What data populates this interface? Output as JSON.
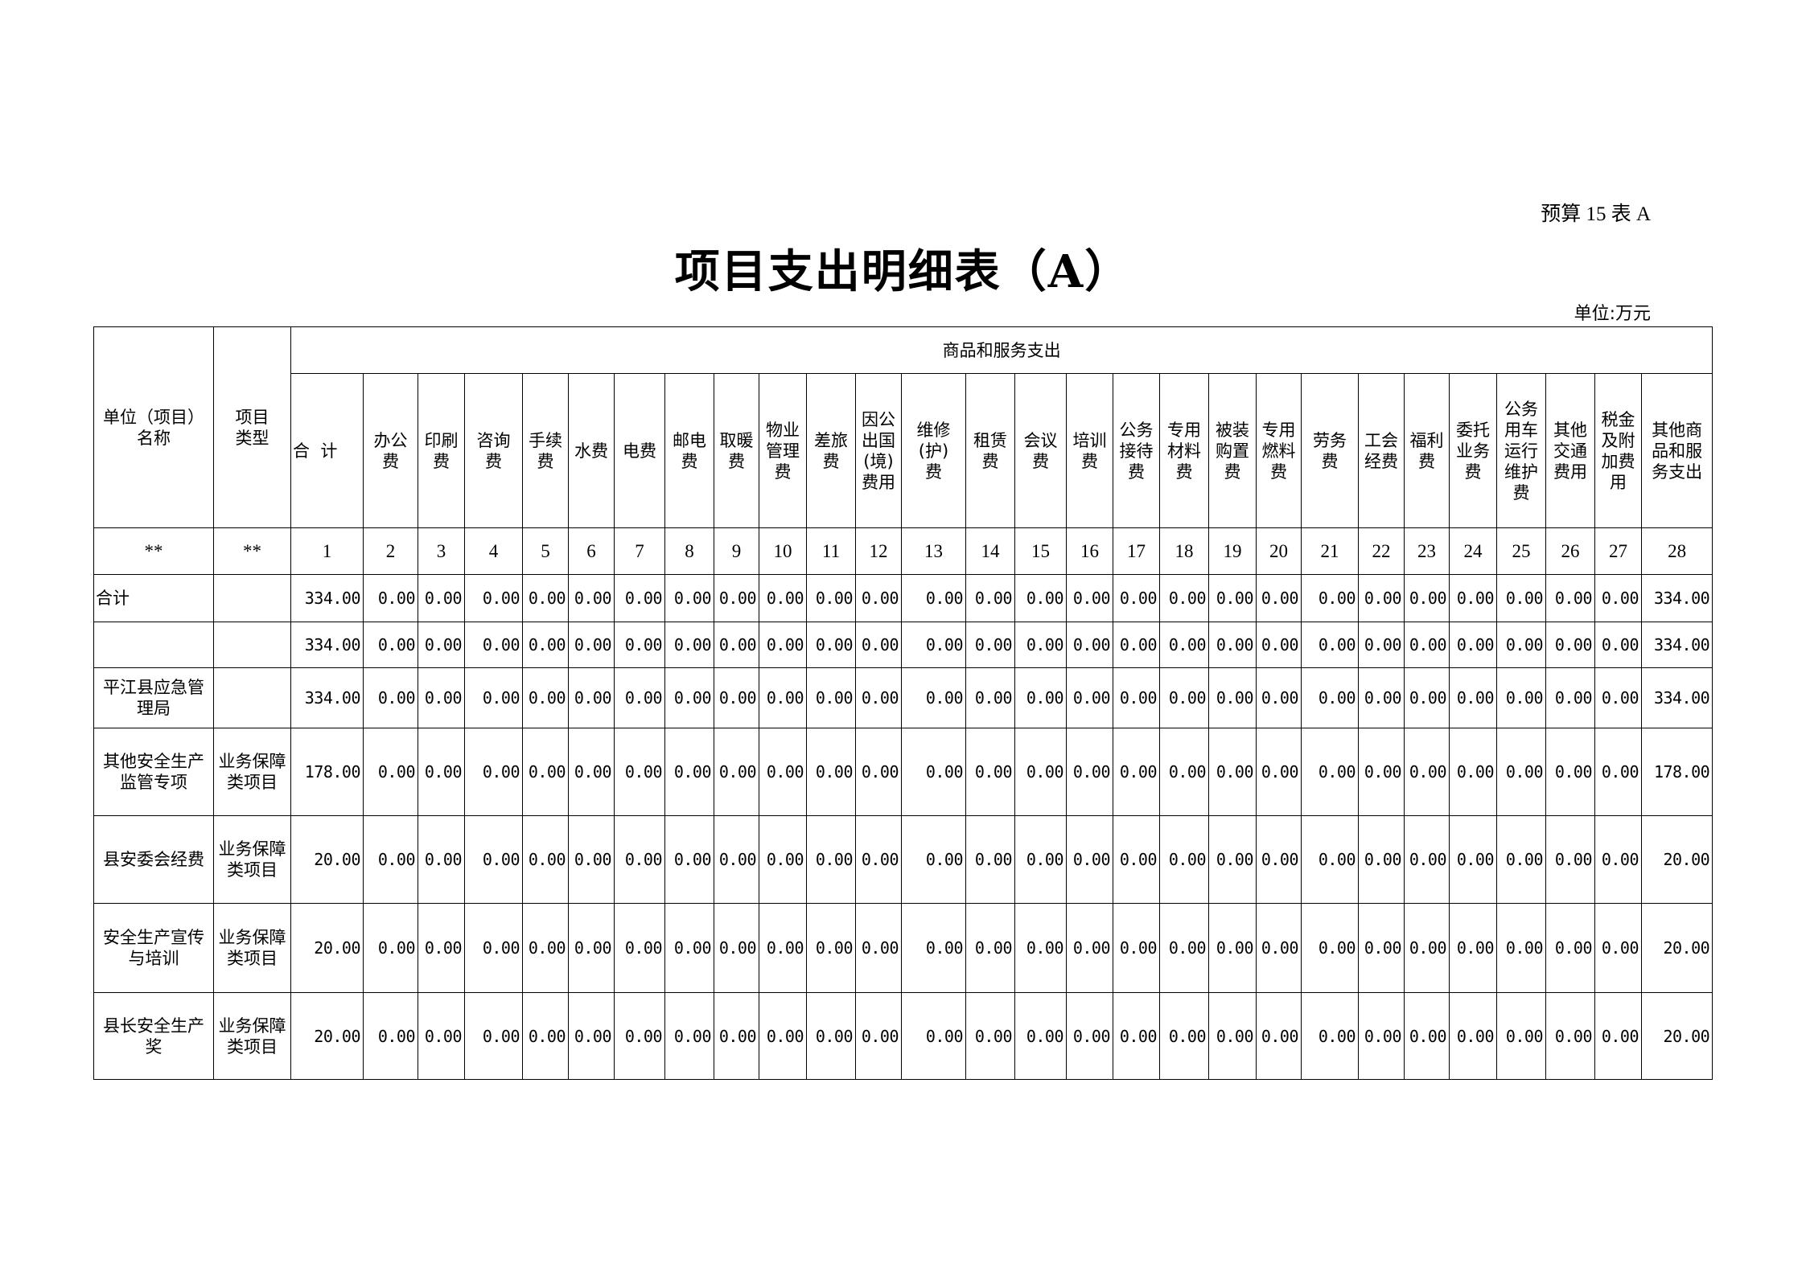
{
  "form_no": "预算 15 表 A",
  "title": "项目支出明细表（A）",
  "unit": "单位:万元",
  "header": {
    "name_col": "单位（项目）\n名称",
    "type_col": "项目\n类型",
    "group": "商品和服务支出",
    "columns": [
      "合  计",
      "办公\n费",
      "印刷\n费",
      "咨询\n费",
      "手续\n费",
      "水费",
      "电费",
      "邮电\n费",
      "取暖\n费",
      "物业\n管理\n费",
      "差旅\n费",
      "因公\n出国\n(境)\n费用",
      "维修\n(护)\n费",
      "租赁\n费",
      "会议\n费",
      "培训\n费",
      "公务\n接待\n费",
      "专用\n材料\n费",
      "被装\n购置\n费",
      "专用\n燃料\n费",
      "劳务\n费",
      "工会\n经费",
      "福利\n费",
      "委托\n业务\n费",
      "公务\n用车\n运行\n维护\n费",
      "其他\n交通\n费用",
      "税金\n及附\n加费\n用",
      "其他商\n品和服\n务支出"
    ],
    "index_row": [
      "**",
      "**",
      "1",
      "2",
      "3",
      "4",
      "5",
      "6",
      "7",
      "8",
      "9",
      "10",
      "11",
      "12",
      "13",
      "14",
      "15",
      "16",
      "17",
      "18",
      "19",
      "20",
      "21",
      "22",
      "23",
      "24",
      "25",
      "26",
      "27",
      "28"
    ]
  },
  "rows": [
    {
      "name": "合计",
      "type": "",
      "total": "334.00",
      "other": "334.00"
    },
    {
      "name": "",
      "type": "",
      "total": "334.00",
      "other": "334.00"
    },
    {
      "name": "平江县应急管理局",
      "type": "",
      "total": "334.00",
      "other": "334.00"
    },
    {
      "name": "其他安全生产监管专项",
      "type": "业务保障类项目",
      "total": "178.00",
      "other": "178.00"
    },
    {
      "name": "县安委会经费",
      "type": "业务保障类项目",
      "total": "20.00",
      "other": "20.00"
    },
    {
      "name": "安全生产宣传与培训",
      "type": "业务保障类项目",
      "total": "20.00",
      "other": "20.00"
    },
    {
      "name": "县长安全生产奖",
      "type": "业务保障类项目",
      "total": "20.00",
      "other": "20.00"
    }
  ],
  "zero_value": "0.00"
}
